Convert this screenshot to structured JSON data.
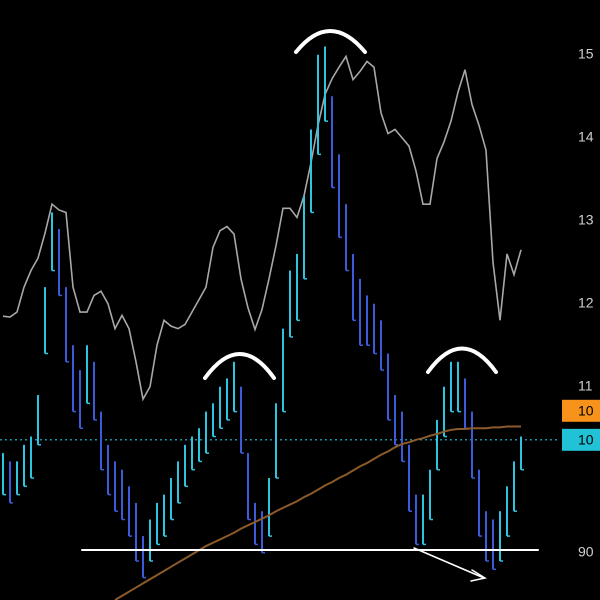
{
  "chart_data": {
    "type": "range-bar",
    "ylim": [
      84.3,
      156.6
    ],
    "yticks": [
      {
        "value": 150,
        "label": "15"
      },
      {
        "value": 140,
        "label": "14"
      },
      {
        "value": 130,
        "label": "13"
      },
      {
        "value": 120,
        "label": "12"
      },
      {
        "value": 110,
        "label": "11"
      },
      90
    ],
    "bar_colors": [
      "#2ec4e0",
      "#3b5bdb"
    ],
    "high": [
      102,
      101,
      101,
      103,
      104,
      109,
      122,
      131,
      129,
      122,
      115,
      112,
      115,
      113,
      107,
      103,
      101,
      100,
      98,
      96,
      92,
      94,
      96,
      97,
      99,
      101,
      103,
      104,
      105,
      107,
      108,
      110,
      111,
      113,
      110,
      102,
      96,
      95,
      99,
      108,
      117,
      124,
      126,
      133,
      141,
      150,
      151,
      145,
      138,
      132,
      126,
      123,
      121,
      120,
      118,
      114,
      109,
      107,
      103,
      97,
      97,
      100,
      106,
      110,
      113,
      113,
      111,
      107,
      100,
      95,
      94,
      95,
      98,
      101,
      104
    ],
    "low": [
      97,
      96,
      97,
      98,
      99,
      103,
      114,
      124,
      121,
      113,
      107,
      105,
      108,
      106,
      100,
      97,
      95,
      94,
      92,
      89,
      87,
      89,
      91,
      92,
      94,
      96,
      98,
      100,
      101,
      102,
      104,
      105,
      106,
      107,
      102,
      94,
      91,
      90,
      92,
      99,
      107,
      116,
      118,
      123,
      131,
      138,
      142,
      134,
      128,
      124,
      118,
      115,
      115,
      114,
      112,
      106,
      103,
      101,
      95,
      91,
      91,
      94,
      100,
      104,
      107,
      107,
      105,
      99,
      92,
      89,
      88,
      89,
      92,
      95,
      100
    ],
    "series": [
      {
        "color": "#a8a8a8",
        "values": [
          118.5,
          118.4,
          119,
          122,
          124,
          125.5,
          128.5,
          132,
          131.3,
          131,
          122,
          119,
          119,
          121,
          121.5,
          120,
          117,
          118.6,
          117,
          113,
          108.5,
          110,
          115,
          118,
          117.3,
          117,
          117.5,
          119,
          120.5,
          122,
          126.8,
          128.8,
          129.3,
          128.4,
          123,
          119.5,
          116.9,
          119.3,
          123,
          127,
          131.5,
          131.5,
          130.4,
          133,
          137,
          141.5,
          145.2,
          147.1,
          148.5,
          149.8,
          147,
          148,
          149.2,
          148.5,
          143,
          140.5,
          141,
          140,
          139,
          136,
          132,
          132,
          137.5,
          139.5,
          142,
          145.5,
          148.2,
          144,
          141.5,
          138.5,
          125,
          118,
          126,
          123.5,
          126.5
        ]
      },
      {
        "color": "#8b5a2b",
        "values": [
          null,
          null,
          null,
          null,
          null,
          null,
          null,
          null,
          null,
          null,
          null,
          null,
          null,
          null,
          null,
          null,
          84.3,
          84.8,
          85.3,
          85.8,
          86.3,
          86.8,
          87.3,
          87.8,
          88.3,
          88.8,
          89.3,
          89.8,
          90.3,
          90.8,
          91.2,
          91.6,
          92.0,
          92.4,
          92.9,
          93.3,
          93.7,
          94.1,
          94.5,
          95.0,
          95.4,
          95.8,
          96.2,
          96.7,
          97.1,
          97.6,
          98.1,
          98.5,
          99.0,
          99.4,
          99.9,
          100.4,
          100.8,
          101.3,
          101.8,
          102.2,
          102.7,
          103.1,
          103.3,
          103.6,
          103.8,
          104.1,
          104.3,
          104.6,
          104.8,
          104.9,
          104.9,
          105.0,
          105.0,
          105.0,
          105.1,
          105.1,
          105.2,
          105.2,
          105.2
        ]
      }
    ],
    "price_labels": [
      {
        "value": 107.1,
        "label": "10",
        "color": "#f7931a"
      },
      {
        "value": 103.6,
        "label": "10",
        "color": "#21c1d6"
      }
    ]
  }
}
